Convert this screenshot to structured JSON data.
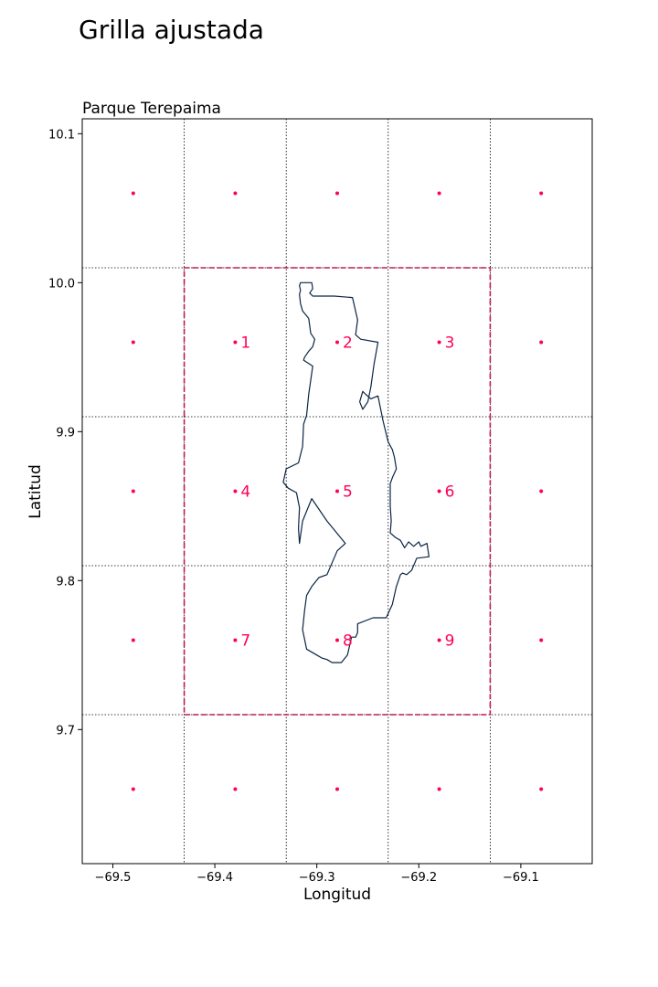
{
  "page": {
    "title": "Grilla ajustada"
  },
  "chart_data": {
    "type": "scatter",
    "subtitle": "Parque Terepaima",
    "xlabel": "Longitud",
    "ylabel": "Latitud",
    "xlim": [
      -69.53,
      -69.03
    ],
    "ylim": [
      9.61,
      10.11
    ],
    "x_ticks": [
      -69.5,
      -69.4,
      -69.3,
      -69.2,
      -69.1
    ],
    "x_tick_labels": [
      "−69.5",
      "−69.4",
      "−69.3",
      "−69.2",
      "−69.1"
    ],
    "y_ticks": [
      9.7,
      9.8,
      9.9,
      10.0,
      10.1
    ],
    "y_tick_labels": [
      "9.7",
      "9.8",
      "9.9",
      "10.0",
      "10.1"
    ],
    "grid_lines": {
      "x": [
        -69.43,
        -69.33,
        -69.23,
        -69.13
      ],
      "y": [
        9.71,
        9.81,
        9.91,
        10.01
      ]
    },
    "grid_points": {
      "x": [
        -69.48,
        -69.38,
        -69.28,
        -69.18,
        -69.08
      ],
      "y": [
        10.06,
        9.96,
        9.86,
        9.76,
        9.66
      ],
      "color": "#ff0055"
    },
    "adjusted_box": {
      "x": [
        -69.43,
        -69.13
      ],
      "y": [
        9.71,
        10.01
      ],
      "color": "#c2185b"
    },
    "labeled_points": [
      {
        "label": "1",
        "x": -69.38,
        "y": 9.96
      },
      {
        "label": "2",
        "x": -69.28,
        "y": 9.96
      },
      {
        "label": "3",
        "x": -69.18,
        "y": 9.96
      },
      {
        "label": "4",
        "x": -69.38,
        "y": 9.86
      },
      {
        "label": "5",
        "x": -69.28,
        "y": 9.86
      },
      {
        "label": "6",
        "x": -69.18,
        "y": 9.86
      },
      {
        "label": "7",
        "x": -69.38,
        "y": 9.76
      },
      {
        "label": "8",
        "x": -69.28,
        "y": 9.76
      },
      {
        "label": "9",
        "x": -69.18,
        "y": 9.76
      }
    ],
    "label_color": "#ff0055",
    "park_outline": {
      "color": "#0b2545",
      "x": [
        -69.316,
        -69.305,
        -69.304,
        -69.307,
        -69.304,
        -69.283,
        -69.265,
        -69.26,
        -69.262,
        -69.257,
        -69.24,
        -69.244,
        -69.247,
        -69.25,
        -69.255,
        -69.258,
        -69.255,
        -69.252,
        -69.247,
        -69.24,
        -69.235,
        -69.23,
        -69.226,
        -69.224,
        -69.222,
        -69.226,
        -69.228,
        -69.228,
        -69.227,
        -69.228,
        -69.223,
        -69.218,
        -69.214,
        -69.21,
        -69.205,
        -69.2,
        -69.198,
        -69.192,
        -69.19,
        -69.202,
        -69.207,
        -69.212,
        -69.216,
        -69.218,
        -69.222,
        -69.226,
        -69.232,
        -69.245,
        -69.26,
        -69.26,
        -69.262,
        -69.266,
        -69.27,
        -69.276,
        -69.285,
        -69.29,
        -69.295,
        -69.3,
        -69.31,
        -69.314,
        -69.312,
        -69.31,
        -69.305,
        -69.298,
        -69.29,
        -69.28,
        -69.272,
        -69.29,
        -69.305,
        -69.314,
        -69.317,
        -69.318,
        -69.317,
        -69.32,
        -69.328,
        -69.333,
        -69.33,
        -69.318,
        -69.314,
        -69.313,
        -69.31,
        -69.308,
        -69.304,
        -69.313,
        -69.312,
        -69.308,
        -69.304,
        -69.302,
        -69.306,
        -69.308,
        -69.314,
        -69.316,
        -69.317,
        -69.316,
        -69.317,
        -69.316
      ],
      "y": [
        10.0,
        10.0,
        9.996,
        9.993,
        9.991,
        9.991,
        9.99,
        9.975,
        9.965,
        9.962,
        9.96,
        9.945,
        9.93,
        9.92,
        9.915,
        9.92,
        9.927,
        9.925,
        9.922,
        9.924,
        9.907,
        9.893,
        9.888,
        9.883,
        9.875,
        9.869,
        9.865,
        9.85,
        9.84,
        9.832,
        9.829,
        9.827,
        9.822,
        9.826,
        9.823,
        9.826,
        9.823,
        9.825,
        9.816,
        9.815,
        9.807,
        9.804,
        9.805,
        9.804,
        9.796,
        9.784,
        9.775,
        9.775,
        9.771,
        9.765,
        9.762,
        9.762,
        9.75,
        9.745,
        9.745,
        9.747,
        9.748,
        9.75,
        9.754,
        9.767,
        9.78,
        9.79,
        9.796,
        9.802,
        9.804,
        9.82,
        9.825,
        9.84,
        9.855,
        9.84,
        9.825,
        9.835,
        9.849,
        9.859,
        9.862,
        9.866,
        9.875,
        9.879,
        9.89,
        9.905,
        9.911,
        9.925,
        9.944,
        9.948,
        9.95,
        9.954,
        9.957,
        9.962,
        9.966,
        9.976,
        9.981,
        9.986,
        9.992,
        9.995,
        9.998,
        10.0
      ]
    }
  }
}
